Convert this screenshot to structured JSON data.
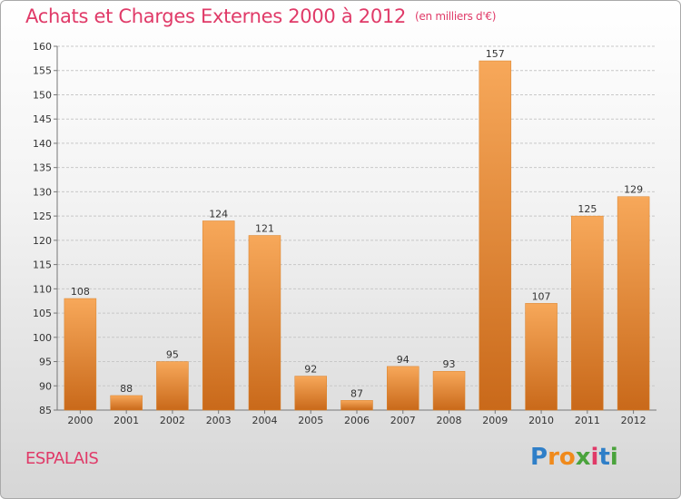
{
  "title": "Achats et Charges Externes 2000 à 2012",
  "unit": "(en milliers d'€)",
  "city": "ESPALAIS",
  "logo": {
    "letters": [
      "P",
      "r",
      "o",
      "x",
      "i",
      "t",
      "i"
    ],
    "colors": [
      "#2f7fc8",
      "#f08a1c",
      "#f08a1c",
      "#4aa33c",
      "#e03a68",
      "#2f7fc8",
      "#4aa33c"
    ]
  },
  "colors": {
    "accent": "#e03a68",
    "bar": "#f0892a",
    "bar_light": "#f7a85a",
    "grid": "#c8c8c8"
  },
  "chart_data": {
    "type": "bar",
    "categories": [
      "2000",
      "2001",
      "2002",
      "2003",
      "2004",
      "2005",
      "2006",
      "2007",
      "2008",
      "2009",
      "2010",
      "2011",
      "2012"
    ],
    "values": [
      108,
      88,
      95,
      124,
      121,
      92,
      87,
      94,
      93,
      157,
      107,
      125,
      129
    ],
    "ylim": [
      85,
      160
    ],
    "yticks": [
      85,
      90,
      95,
      100,
      105,
      110,
      115,
      120,
      125,
      130,
      135,
      140,
      145,
      150,
      155,
      160
    ],
    "xlabel": "",
    "ylabel": "",
    "grid": true,
    "data_labels": true
  }
}
